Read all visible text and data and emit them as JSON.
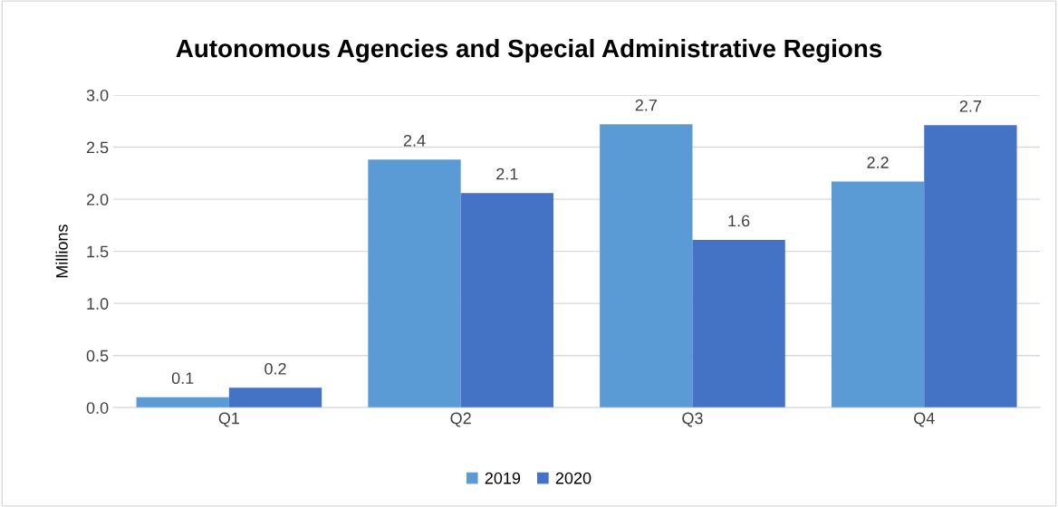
{
  "chart_data": {
    "type": "bar",
    "title": "Autonomous Agencies and Special Administrative Regions",
    "ylabel": "Millions",
    "categories": [
      "Q1",
      "Q2",
      "Q3",
      "Q4"
    ],
    "series": [
      {
        "name": "2019",
        "color": "#5b9bd5",
        "values": [
          0.1,
          2.38,
          2.72,
          2.17
        ],
        "value_labels": [
          "0.1",
          "2.4",
          "2.7",
          "2.2"
        ]
      },
      {
        "name": "2020",
        "color": "#4472c4",
        "values": [
          0.19,
          2.06,
          1.61,
          2.71
        ],
        "value_labels": [
          "0.2",
          "2.1",
          "1.6",
          "2.7"
        ]
      }
    ],
    "ylim": [
      0,
      3.0
    ],
    "yticks": [
      {
        "value": 0,
        "label": "0.0"
      },
      {
        "value": 0.5,
        "label": "0.5"
      },
      {
        "value": 1.0,
        "label": "1.0"
      },
      {
        "value": 1.5,
        "label": "1.5"
      },
      {
        "value": 2.0,
        "label": "2.0"
      },
      {
        "value": 2.5,
        "label": "2.5"
      },
      {
        "value": 3.0,
        "label": "3.0"
      }
    ],
    "grid": "y",
    "legend": "bottom"
  }
}
